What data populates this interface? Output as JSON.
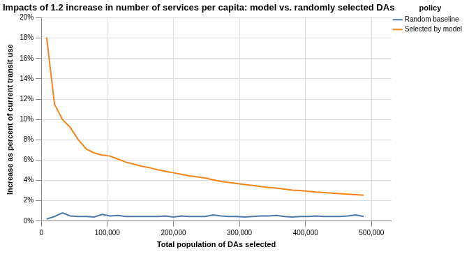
{
  "chart_data": {
    "type": "line",
    "title": "Impacts of 1.2 increase in number of services per capita: model vs. randomly selected DAs",
    "x_label": "Total population of DAs selected",
    "y_label": "Increase as percent of current transit use",
    "legend_title": "policy",
    "legend": "right",
    "grid": true,
    "x": [
      8000,
      20000,
      32000,
      44000,
      56000,
      68000,
      80000,
      92000,
      104000,
      116000,
      128000,
      140000,
      152000,
      164000,
      176000,
      188000,
      200000,
      212000,
      224000,
      236000,
      248000,
      260000,
      272000,
      284000,
      296000,
      308000,
      320000,
      332000,
      344000,
      356000,
      368000,
      380000,
      392000,
      404000,
      416000,
      428000,
      440000,
      452000,
      464000,
      476000,
      488000
    ],
    "series": [
      {
        "name": "Random baseline",
        "color": "#4c78a8",
        "values": [
          0.2,
          0.45,
          0.8,
          0.5,
          0.45,
          0.45,
          0.4,
          0.65,
          0.5,
          0.55,
          0.45,
          0.45,
          0.45,
          0.45,
          0.45,
          0.5,
          0.4,
          0.5,
          0.45,
          0.45,
          0.45,
          0.6,
          0.5,
          0.45,
          0.45,
          0.4,
          0.45,
          0.5,
          0.5,
          0.55,
          0.45,
          0.4,
          0.45,
          0.45,
          0.5,
          0.45,
          0.45,
          0.45,
          0.5,
          0.6,
          0.45
        ]
      },
      {
        "name": "Selected by model",
        "color": "#f58518",
        "values": [
          18.1,
          11.5,
          10.0,
          9.2,
          8.0,
          7.1,
          6.7,
          6.5,
          6.4,
          6.1,
          5.8,
          5.6,
          5.4,
          5.25,
          5.05,
          4.9,
          4.75,
          4.6,
          4.45,
          4.35,
          4.25,
          4.05,
          3.9,
          3.8,
          3.7,
          3.6,
          3.5,
          3.4,
          3.3,
          3.25,
          3.15,
          3.05,
          3.0,
          2.92,
          2.85,
          2.8,
          2.75,
          2.7,
          2.65,
          2.6,
          2.55
        ]
      }
    ],
    "xlim": [
      0,
      530000
    ],
    "xticks": [
      {
        "value": 0,
        "label": "0"
      },
      {
        "value": 100000,
        "label": "100,000"
      },
      {
        "value": 200000,
        "label": "200,000"
      },
      {
        "value": 300000,
        "label": "300,000"
      },
      {
        "value": 400000,
        "label": "400,000"
      },
      {
        "value": 500000,
        "label": "500,000"
      }
    ],
    "ylim": [
      0,
      20
    ],
    "yticks": [
      {
        "value": 0,
        "label": "0%"
      },
      {
        "value": 2,
        "label": "2%"
      },
      {
        "value": 4,
        "label": "4%"
      },
      {
        "value": 6,
        "label": "6%"
      },
      {
        "value": 8,
        "label": "8%"
      },
      {
        "value": 10,
        "label": "10%"
      },
      {
        "value": 12,
        "label": "12%"
      },
      {
        "value": 14,
        "label": "14%"
      },
      {
        "value": 16,
        "label": "16%"
      },
      {
        "value": 18,
        "label": "18%"
      },
      {
        "value": 20,
        "label": "20%"
      }
    ]
  }
}
